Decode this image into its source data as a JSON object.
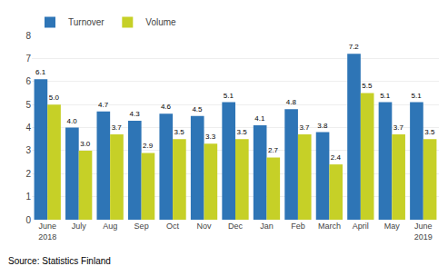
{
  "chart_data": {
    "type": "bar",
    "categories": [
      "June\n2018",
      "July",
      "Aug",
      "Sep",
      "Oct",
      "Nov",
      "Dec",
      "Jan",
      "Feb",
      "March",
      "April",
      "May",
      "June\n2019"
    ],
    "series": [
      {
        "name": "Turnover",
        "color": "#2E75B6",
        "values": [
          6.1,
          4.0,
          4.7,
          4.3,
          4.6,
          4.5,
          5.1,
          4.1,
          4.8,
          3.8,
          7.2,
          5.1,
          5.1
        ],
        "value_labels": [
          "6.1",
          "4.0",
          "4.7",
          "4.3",
          "4.6",
          "4.5",
          "5.1",
          "4.1",
          "4.8",
          "3.8",
          "7.2",
          "5.1",
          "5.1"
        ]
      },
      {
        "name": "Volume",
        "color": "#C6D027",
        "values": [
          5.0,
          3.0,
          3.7,
          2.9,
          3.5,
          3.3,
          3.5,
          2.7,
          3.7,
          2.4,
          5.5,
          3.7,
          3.5
        ],
        "value_labels": [
          "5.0",
          "3.0",
          "3.7",
          "2.9",
          "3.5",
          "3.3",
          "3.5",
          "2.7",
          "3.7",
          "2.4",
          "5.5",
          "3.7",
          "3.5"
        ]
      }
    ],
    "ylim": [
      0,
      8
    ],
    "yticks": [
      0,
      1,
      2,
      3,
      4,
      5,
      6,
      7,
      8
    ],
    "grid": true,
    "legend": "upper left",
    "data_labels": true,
    "annotations": [
      "Source: Statistics Finland"
    ]
  }
}
